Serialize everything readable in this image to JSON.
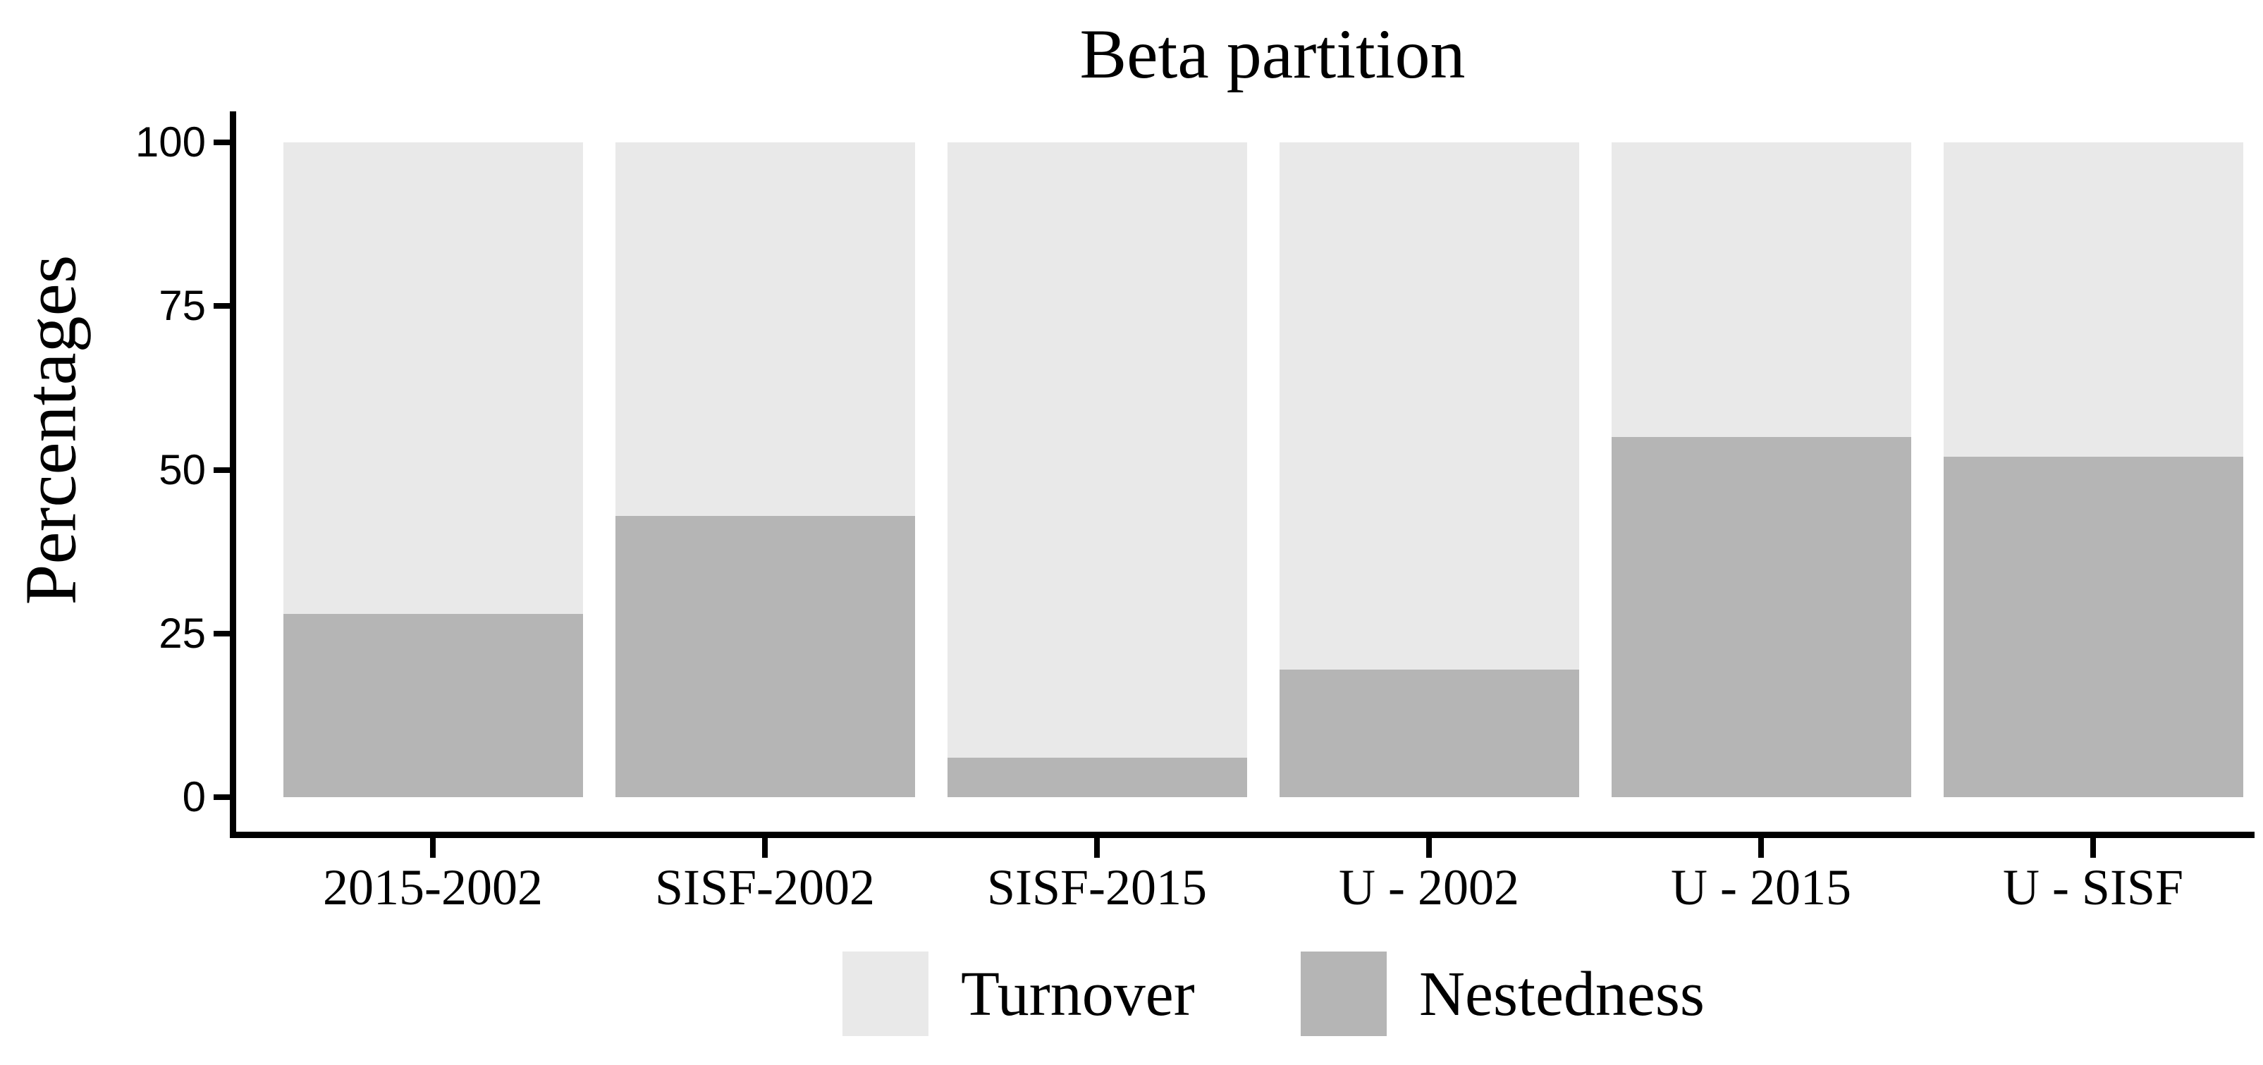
{
  "chart_data": {
    "type": "bar",
    "stacked": true,
    "title": "Beta partition",
    "xlabel": "",
    "ylabel": "Percentages",
    "categories": [
      "2015-2002",
      "SISF-2002",
      "SISF-2015",
      "U - 2002",
      "U - 2015",
      "U - SISF"
    ],
    "series": [
      {
        "name": "Turnover",
        "color": "#e9e9e9",
        "values": [
          72,
          57,
          94,
          80.5,
          45,
          48
        ]
      },
      {
        "name": "Nestedness",
        "color": "#b5b5b5",
        "values": [
          28,
          43,
          6,
          19.5,
          55,
          52
        ]
      }
    ],
    "ylim": [
      0,
      100
    ],
    "yticks": [
      0,
      25,
      50,
      75,
      100
    ],
    "grid": false,
    "legend_position": "bottom",
    "axis_color": "#000000",
    "background_color": "#ffffff"
  }
}
